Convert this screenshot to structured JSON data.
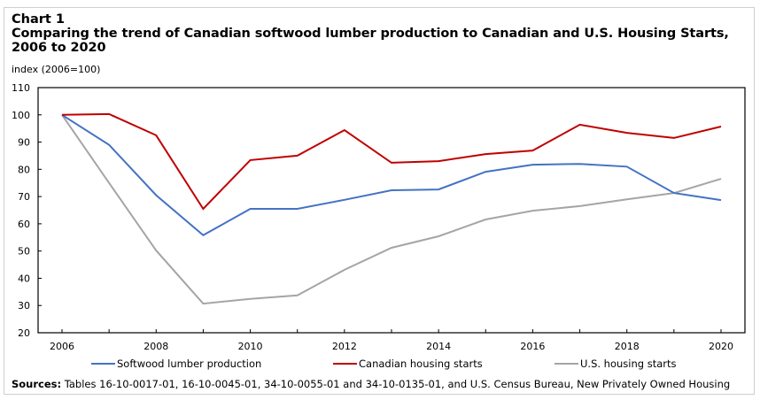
{
  "chart_number": "Chart 1",
  "title": "Comparing the trend of Canadian softwood lumber production to Canadian and U.S. Housing Starts, 2006 to 2020",
  "sources_label": "Sources:",
  "sources_text": "Tables 16-10-0017-01, 16-10-0045-01, 34-10-0055-01 and 34-10-0135-01, and U.S. Census Bureau, New Privately Owned Housing",
  "chart_data": {
    "type": "line",
    "title": "Comparing the trend of Canadian softwood lumber production to Canadian and U.S. Housing Starts, 2006 to 2020",
    "xlabel": "",
    "ylabel": "index (2006=100)",
    "x": [
      2006,
      2007,
      2008,
      2009,
      2010,
      2011,
      2012,
      2013,
      2014,
      2015,
      2016,
      2017,
      2018,
      2019,
      2020
    ],
    "xlim": [
      2006,
      2020
    ],
    "ylim": [
      20,
      110
    ],
    "xticks": [
      2006,
      2007,
      2008,
      2009,
      2010,
      2011,
      2012,
      2013,
      2014,
      2015,
      2016,
      2017,
      2018,
      2019,
      2020
    ],
    "xtick_labels": [
      "2006",
      "2008",
      "2010",
      "2012",
      "2014",
      "2016",
      "2018",
      "2020"
    ],
    "xtick_label_values": [
      2006,
      2008,
      2010,
      2012,
      2014,
      2016,
      2018,
      2020
    ],
    "yticks": [
      20,
      30,
      40,
      50,
      60,
      70,
      80,
      90,
      100,
      110
    ],
    "ytick_labels": [
      "20",
      "30",
      "40",
      "50",
      "60",
      "70",
      "80",
      "90",
      "100",
      "110"
    ],
    "grid": false,
    "legend_position": "bottom",
    "series": [
      {
        "name": "Softwood lumber production",
        "color": "#4472c4",
        "values": [
          100,
          89,
          70.5,
          55.8,
          65.5,
          65.5,
          68.8,
          72.3,
          72.6,
          79.1,
          81.7,
          82.0,
          81.0,
          71.3,
          68.7
        ]
      },
      {
        "name": "Canadian housing starts",
        "color": "#c00000",
        "values": [
          100,
          100.3,
          92.5,
          65.5,
          83.4,
          85.0,
          94.4,
          82.4,
          83.0,
          85.6,
          86.9,
          96.4,
          93.4,
          91.5,
          95.7
        ]
      },
      {
        "name": "U.S. housing starts",
        "color": "#a5a5a5",
        "values": [
          100,
          75,
          50.2,
          30.7,
          32.4,
          33.7,
          43.1,
          51.2,
          55.4,
          61.6,
          64.8,
          66.5,
          69.0,
          71.3,
          76.5
        ]
      }
    ]
  }
}
